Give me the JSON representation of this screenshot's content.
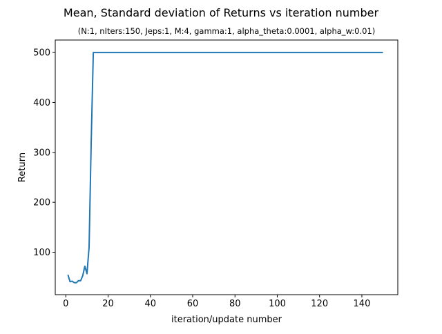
{
  "chart_data": {
    "type": "line",
    "title": "Mean, Standard deviation of Returns vs iteration number",
    "subtitle": "(N:1, nIters:150, Jeps:1, M:4, gamma:1, alpha_theta:0.0001, alpha_w:0.01)",
    "xlabel": "iteration/update number",
    "ylabel": "Return",
    "xlim": [
      -5,
      157
    ],
    "ylim": [
      15,
      525
    ],
    "xticks": [
      0,
      20,
      40,
      60,
      80,
      100,
      120,
      140
    ],
    "yticks": [
      100,
      200,
      300,
      400,
      500
    ],
    "grid": false,
    "series": [
      {
        "color": "#1f77b4",
        "x": [
          1,
          2,
          3,
          4,
          5,
          6,
          7,
          8,
          9,
          10,
          11,
          12,
          13,
          14,
          20,
          40,
          60,
          80,
          100,
          120,
          140,
          150
        ],
        "y": [
          55,
          41,
          42,
          39,
          39,
          43,
          43,
          53,
          72,
          57,
          110,
          320,
          500,
          500,
          500,
          500,
          500,
          500,
          500,
          500,
          500,
          500
        ]
      }
    ]
  }
}
